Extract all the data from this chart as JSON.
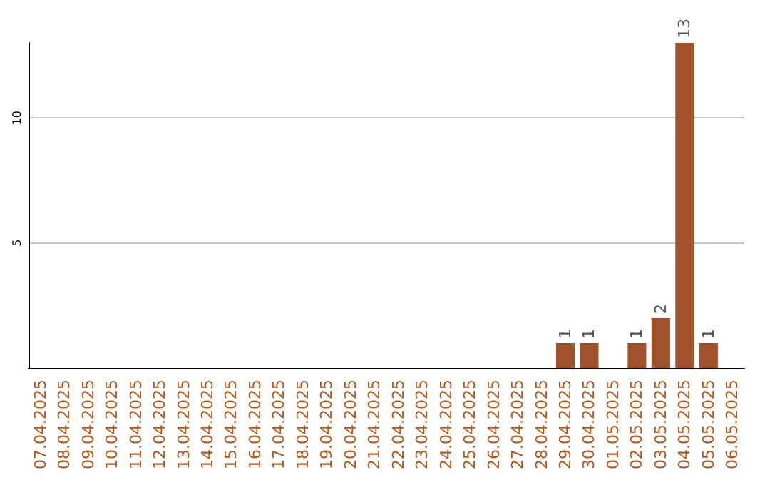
{
  "chart_data": {
    "type": "bar",
    "categories": [
      "07.04.2025",
      "08.04.2025",
      "09.04.2025",
      "10.04.2025",
      "11.04.2025",
      "12.04.2025",
      "13.04.2025",
      "14.04.2025",
      "15.04.2025",
      "16.04.2025",
      "17.04.2025",
      "18.04.2025",
      "19.04.2025",
      "20.04.2025",
      "21.04.2025",
      "22.04.2025",
      "23.04.2025",
      "24.04.2025",
      "25.04.2025",
      "26.04.2025",
      "27.04.2025",
      "28.04.2025",
      "29.04.2025",
      "30.04.2025",
      "01.05.2025",
      "02.05.2025",
      "03.05.2025",
      "04.05.2025",
      "05.05.2025",
      "06.05.2025"
    ],
    "values": [
      0,
      0,
      0,
      0,
      0,
      0,
      0,
      0,
      0,
      0,
      0,
      0,
      0,
      0,
      0,
      0,
      0,
      0,
      0,
      0,
      0,
      0,
      1,
      1,
      0,
      1,
      2,
      13,
      1,
      0
    ],
    "value_labels": [
      null,
      null,
      null,
      null,
      null,
      null,
      null,
      null,
      null,
      null,
      null,
      null,
      null,
      null,
      null,
      null,
      null,
      null,
      null,
      null,
      null,
      null,
      "1",
      "1",
      null,
      "1",
      "2",
      "13",
      "1",
      null
    ],
    "color": "#a0522d",
    "ylim": [
      0,
      13
    ],
    "yticks": [
      5,
      10
    ],
    "grid": "y"
  }
}
